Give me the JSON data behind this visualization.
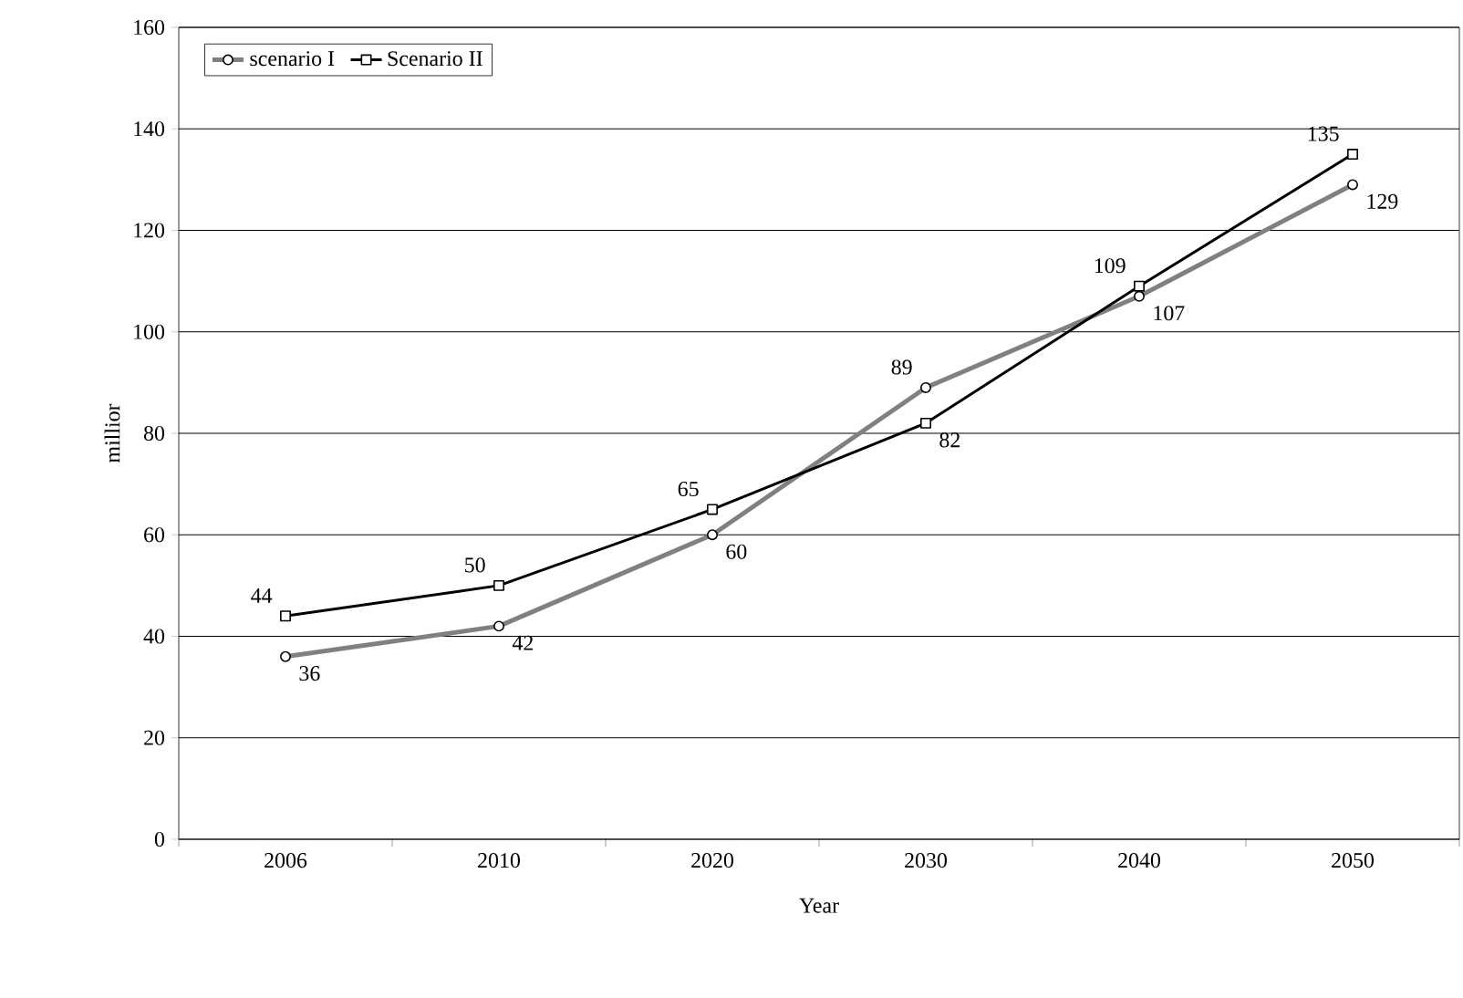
{
  "chart_data": {
    "type": "line",
    "xlabel": "Year",
    "ylabel": "millior",
    "categories": [
      "2006",
      "2010",
      "2020",
      "2030",
      "2040",
      "2050"
    ],
    "series": [
      {
        "name": "scenario I",
        "color": "#808080",
        "marker": "circle",
        "values": [
          36,
          42,
          60,
          89,
          107,
          129
        ]
      },
      {
        "name": "Scenario II",
        "color": "#000000",
        "marker": "square",
        "values": [
          44,
          50,
          65,
          82,
          109,
          135
        ]
      }
    ],
    "ylim": [
      0,
      160
    ],
    "yticks": [
      0,
      20,
      40,
      60,
      80,
      100,
      120,
      140,
      160
    ],
    "grid": "y",
    "legend": "top left",
    "data_labels": true
  }
}
